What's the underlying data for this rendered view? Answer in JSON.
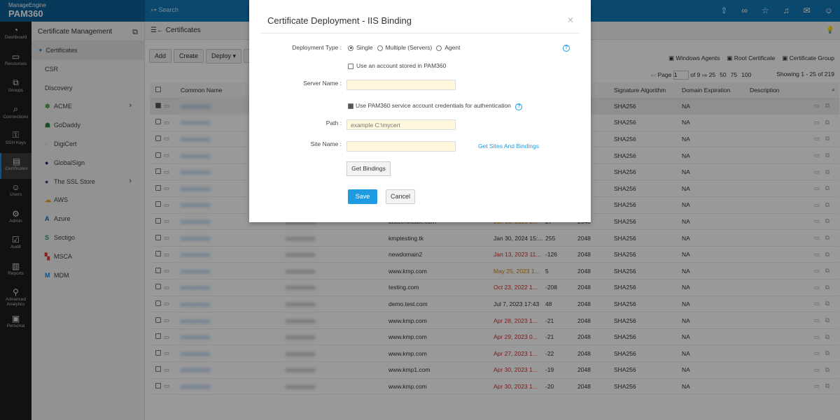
{
  "header": {
    "vendor": "ManageEngine",
    "product": "PAM360",
    "search_placeholder": "Search",
    "icons": [
      "rocket-icon",
      "link-icon",
      "user-star-icon",
      "bell-icon",
      "mail-icon",
      "user-icon"
    ]
  },
  "nav": [
    {
      "label": "Dashboard",
      "icon": "◔"
    },
    {
      "label": "Resources",
      "icon": "▭"
    },
    {
      "label": "Groups",
      "icon": "⧉"
    },
    {
      "label": "Connections",
      "icon": "⌕"
    },
    {
      "label": "SSH Keys",
      "icon": "⚿"
    },
    {
      "label": "Certificates",
      "icon": "▤",
      "active": true
    },
    {
      "label": "Users",
      "icon": "☺"
    },
    {
      "label": "Admin",
      "icon": "⚙"
    },
    {
      "label": "Audit",
      "icon": "☑"
    },
    {
      "label": "Reports",
      "icon": "▥"
    },
    {
      "label": "Advanced Analytics",
      "icon": "⚲"
    },
    {
      "label": "Personal",
      "icon": "▣"
    }
  ],
  "sidebar": {
    "title": "Certificate Management",
    "items": [
      {
        "label": "Certificates",
        "active": true
      },
      {
        "label": "CSR"
      },
      {
        "label": "Discovery"
      },
      {
        "label": "ACME",
        "logo": "✽",
        "color": "#4caf50",
        "chevron": true
      },
      {
        "label": "GoDaddy",
        "logo": "☗",
        "color": "#2e7d32"
      },
      {
        "label": "DigiCert",
        "logo": "◌",
        "color": "#1565c0"
      },
      {
        "label": "GlobalSign",
        "logo": "●",
        "color": "#1a237e"
      },
      {
        "label": "The SSL Store",
        "logo": "●",
        "color": "#2e4a7a",
        "chevron": true
      },
      {
        "label": "AWS",
        "logo": "☁",
        "color": "#f0a020"
      },
      {
        "label": "Azure",
        "logo": "A",
        "color": "#1565c0"
      },
      {
        "label": "Sectigo",
        "logo": "S",
        "color": "#2e9d6a"
      },
      {
        "label": "MSCA",
        "logo": "▚",
        "color": "#e53935"
      },
      {
        "label": "MDM",
        "logo": "M",
        "color": "#1e88e5"
      }
    ]
  },
  "main": {
    "breadcrumb": "Certificates",
    "toolbar": [
      "Add",
      "Create",
      "Deploy ▾",
      "R"
    ],
    "links": [
      "Windows Agents",
      "Root Certificate",
      "Certificate Group"
    ],
    "pager": {
      "page_label": "Page",
      "page": "1",
      "of": "of 9",
      "sizes": [
        "25",
        "50",
        "75",
        "100"
      ],
      "showing": "Showing 1 - 25 of 219"
    },
    "columns": [
      "Common Name",
      "",
      "",
      "",
      "",
      "ze",
      "Signature Algorithm",
      "Domain Expiration",
      "Description"
    ],
    "rows": [
      {
        "checked": true,
        "domain": "",
        "expiry": "",
        "days": "",
        "key": "",
        "sig": "SHA256",
        "dexp": "NA"
      },
      {
        "domain": "",
        "expiry": "",
        "days": "",
        "key": "",
        "sig": "SHA256",
        "dexp": "NA"
      },
      {
        "domain": "",
        "expiry": "",
        "days": "",
        "key": "",
        "sig": "SHA256",
        "dexp": "NA"
      },
      {
        "domain": "",
        "expiry": "",
        "days": "",
        "key": "",
        "sig": "SHA256",
        "dexp": "NA"
      },
      {
        "domain": "",
        "expiry": "",
        "days": "",
        "key": "",
        "sig": "SHA256",
        "dexp": "NA"
      },
      {
        "domain": "",
        "expiry": "",
        "days": "",
        "key": "",
        "sig": "SHA256",
        "dexp": "NA"
      },
      {
        "domain": "",
        "expiry": "",
        "days": "",
        "key": "",
        "sig": "SHA256",
        "dexp": "NA"
      },
      {
        "domain": "lastcertificate.com",
        "expiry": "Jun 16, 2023 2...",
        "status": "orange",
        "days": "27",
        "key": "2048",
        "sig": "SHA256",
        "dexp": "NA"
      },
      {
        "domain": "kmptesting.tk",
        "expiry": "Jan 30, 2024 15:...",
        "days": "255",
        "key": "2048",
        "sig": "SHA256",
        "dexp": "NA"
      },
      {
        "domain": "newdomain2",
        "expiry": "Jan 13, 2023 11...",
        "status": "red",
        "days": "-126",
        "key": "2048",
        "sig": "SHA256",
        "dexp": "NA"
      },
      {
        "domain": "www.kmp.com",
        "expiry": "May 25, 2023 1...",
        "status": "orange",
        "days": "5",
        "key": "2048",
        "sig": "SHA256",
        "dexp": "NA"
      },
      {
        "domain": "testing.com",
        "expiry": "Oct 23, 2022 1...",
        "status": "red",
        "days": "-208",
        "key": "2048",
        "sig": "SHA256",
        "dexp": "NA"
      },
      {
        "domain": "demo.test.com",
        "expiry": "Jul 7, 2023 17:43",
        "days": "48",
        "key": "2048",
        "sig": "SHA256",
        "dexp": "NA"
      },
      {
        "domain": "www.kmp.com",
        "expiry": "Apr 28, 2023 1...",
        "status": "red",
        "days": "-21",
        "key": "2048",
        "sig": "SHA256",
        "dexp": "NA"
      },
      {
        "domain": "www.kmp.com",
        "expiry": "Apr 29, 2023 0...",
        "status": "red",
        "days": "-21",
        "key": "2048",
        "sig": "SHA256",
        "dexp": "NA"
      },
      {
        "domain": "www.kmp.com",
        "expiry": "Apr 27, 2023 1...",
        "status": "red",
        "days": "-22",
        "key": "2048",
        "sig": "SHA256",
        "dexp": "NA"
      },
      {
        "domain": "www.kmp1.com",
        "expiry": "Apr 30, 2023 1...",
        "status": "red",
        "days": "-19",
        "key": "2048",
        "sig": "SHA256",
        "dexp": "NA"
      },
      {
        "domain": "www.kmp.com",
        "expiry": "Apr 30, 2023 1...",
        "status": "red",
        "days": "-20",
        "key": "2048",
        "sig": "SHA256",
        "dexp": "NA"
      }
    ]
  },
  "modal": {
    "title": "Certificate Deployment - IIS Binding",
    "deployment_type_label": "Deployment Type :",
    "options": [
      "Single",
      "Multiple (Servers)",
      "Agent"
    ],
    "selected": "Single",
    "use_account_label": "Use an account stored in PAM360",
    "use_account_checked": false,
    "server_name_label": "Server Name :",
    "server_name_value": "",
    "service_account_label": "Use PAM360 service account credentials for authentication",
    "service_account_checked": true,
    "path_label": "Path :",
    "path_placeholder": "example C:\\mycert",
    "site_name_label": "Site Name :",
    "site_name_value": "",
    "get_sites_link": "Get Sites And Bindings",
    "get_bindings": "Get Bindings",
    "save": "Save",
    "cancel": "Cancel"
  }
}
